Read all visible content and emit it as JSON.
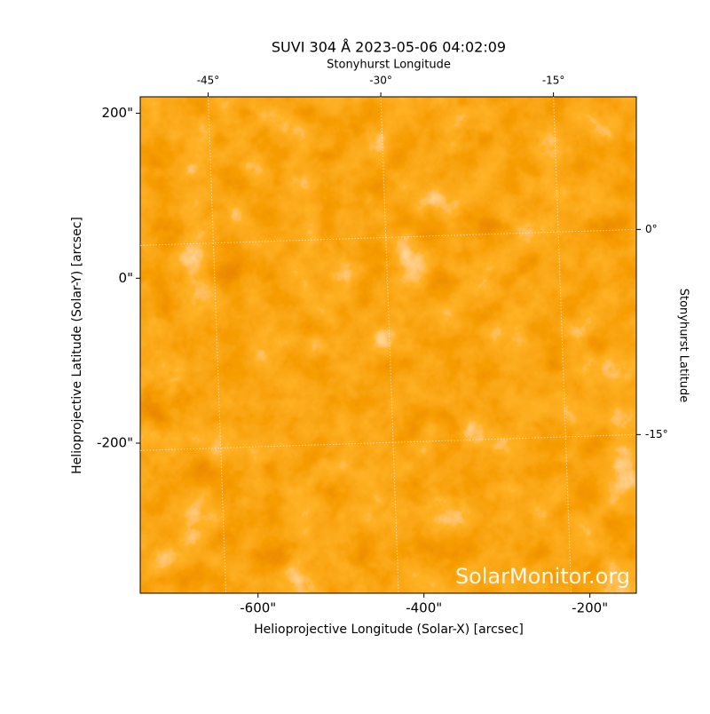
{
  "chart_data": {
    "type": "image",
    "title": "SUVI 304 Å 2023-05-06 04:02:09",
    "xlabel": "Helioprojective Longitude (Solar-X) [arcsec]",
    "ylabel": "Helioprojective Latitude (Solar-Y) [arcsec]",
    "x2label": "Stonyhurst Longitude",
    "y2label": "Stonyhurst Latitude",
    "watermark": "SolarMonitor.org",
    "xlim": [
      -742,
      -144
    ],
    "ylim": [
      -382,
      220
    ],
    "xticks": [
      {
        "value": -600,
        "label": "-600\""
      },
      {
        "value": -400,
        "label": "-400\""
      },
      {
        "value": -200,
        "label": "-200\""
      }
    ],
    "yticks": [
      {
        "value": -200,
        "label": "-200\""
      },
      {
        "value": 0,
        "label": "0\""
      },
      {
        "value": 200,
        "label": "200\""
      }
    ],
    "x2lim": [
      -50.9,
      -7.8
    ],
    "x2ticks": [
      {
        "value": -45,
        "label": "-45°"
      },
      {
        "value": -30,
        "label": "-30°"
      },
      {
        "value": -15,
        "label": "-15°"
      }
    ],
    "y2lim": [
      -26.6,
      9.7
    ],
    "y2ticks": [
      {
        "value": -15,
        "label": "-15°"
      },
      {
        "value": 0,
        "label": "0°"
      }
    ],
    "grid": true
  }
}
